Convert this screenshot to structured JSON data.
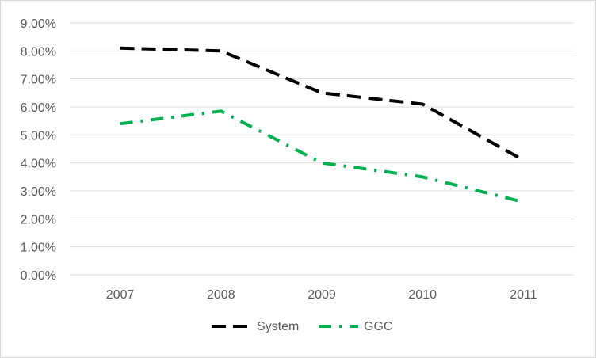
{
  "chart_data": {
    "type": "line",
    "title": "",
    "xlabel": "",
    "ylabel": "",
    "x": [
      "2007",
      "2008",
      "2009",
      "2010",
      "2011"
    ],
    "ylim": [
      0,
      9
    ],
    "yticks": [
      "0.00%",
      "1.00%",
      "2.00%",
      "3.00%",
      "4.00%",
      "5.00%",
      "6.00%",
      "7.00%",
      "8.00%",
      "9.00%"
    ],
    "grid": true,
    "legend": "bottom",
    "series": [
      {
        "name": "System",
        "values": [
          8.1,
          8.0,
          6.5,
          6.1,
          4.1
        ],
        "color": "#000000",
        "dash": "dash"
      },
      {
        "name": "GGC",
        "values": [
          5.4,
          5.85,
          4.0,
          3.5,
          2.6
        ],
        "color": "#00b050",
        "dash": "dash-dot"
      }
    ]
  }
}
